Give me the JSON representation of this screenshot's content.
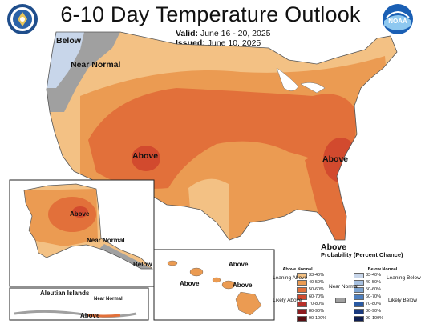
{
  "header": {
    "title": "6-10 Day Temperature Outlook",
    "valid_label": "Valid:",
    "valid_value": "June 16 - 20, 2025",
    "issued_label": "Issued:",
    "issued_value": "June 10, 2025",
    "left_logo": "doc-seal-icon",
    "right_logo": "noaa-logo-icon",
    "right_logo_text": "NOAA"
  },
  "map_labels": {
    "below_nw": "Below",
    "near_normal_nw": "Near Normal",
    "above_west": "Above",
    "above_east": "Above",
    "above_south": "Above",
    "alaska_above": "Above",
    "alaska_near_normal": "Near Normal",
    "alaska_below": "Below",
    "hawaii_above_1": "Above",
    "hawaii_above_2": "Above",
    "hawaii_above_3": "Above",
    "aleutian_title": "Aleutian Islands",
    "aleutian_near_normal": "Near Normal",
    "aleutian_above": "Above"
  },
  "legend": {
    "title": "Probability (Percent Chance)",
    "above_header": "Above Normal",
    "below_header": "Below Normal",
    "near_normal": "Near Normal",
    "leaning_above": "Leaning Above",
    "likely_above": "Likely Above",
    "leaning_below": "Leaning Below",
    "likely_below": "Likely Below",
    "above_bins": [
      {
        "label": "33-40%",
        "color": "#f3c184"
      },
      {
        "label": "40-50%",
        "color": "#eb9b52"
      },
      {
        "label": "50-60%",
        "color": "#e2703a"
      },
      {
        "label": "60-70%",
        "color": "#d24a2e"
      },
      {
        "label": "70-80%",
        "color": "#b8302a"
      },
      {
        "label": "80-90%",
        "color": "#8e1c20"
      },
      {
        "label": "90-100%",
        "color": "#5a0e12"
      }
    ],
    "below_bins": [
      {
        "label": "33-40%",
        "color": "#c8d6ea"
      },
      {
        "label": "40-50%",
        "color": "#a6c0e0"
      },
      {
        "label": "50-60%",
        "color": "#7ea4d1"
      },
      {
        "label": "60-70%",
        "color": "#4e7fbe"
      },
      {
        "label": "70-80%",
        "color": "#2a5aa3"
      },
      {
        "label": "80-90%",
        "color": "#1a3a7e"
      },
      {
        "label": "90-100%",
        "color": "#101f50"
      }
    ],
    "near_normal_color": "#a0a0a0"
  }
}
